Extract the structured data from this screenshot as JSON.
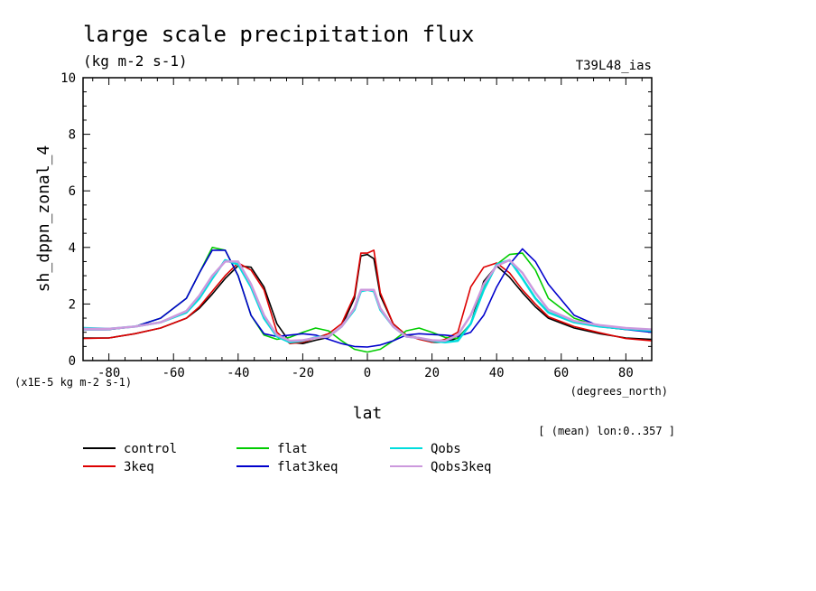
{
  "chart_data": {
    "type": "line",
    "title": "large scale precipitation flux",
    "subtitle": "(kg m-2 s-1)",
    "run_label": "T39L48_ias",
    "ylabel": "sh_dppn_zonal_4",
    "y_scale_note": "(x1E-5 kg m-2 s-1)",
    "xlabel": "lat",
    "x_units": "(degrees_north)",
    "mean_note": "[ (mean) lon:0..357 ]",
    "xlim": [
      -88,
      88
    ],
    "ylim": [
      0,
      10
    ],
    "x_ticks": [
      -80,
      -60,
      -40,
      -20,
      0,
      20,
      40,
      60,
      80
    ],
    "y_ticks": [
      0,
      2,
      4,
      6,
      8,
      10
    ],
    "x_tick_labels": [
      "-80",
      "-60",
      "-40",
      "-20",
      "0",
      "20",
      "40",
      "60",
      "80"
    ],
    "y_tick_labels": [
      "0",
      "2",
      "4",
      "6",
      "8",
      "10"
    ],
    "legend": "below",
    "series": [
      {
        "name": "control",
        "color": "#000000",
        "x": [
          -88,
          -80,
          -72,
          -64,
          -56,
          -52,
          -48,
          -44,
          -40,
          -36,
          -32,
          -28,
          -24,
          -20,
          -16,
          -12,
          -8,
          -4,
          -2,
          0,
          2,
          4,
          8,
          12,
          16,
          20,
          24,
          28,
          32,
          36,
          40,
          44,
          48,
          52,
          56,
          64,
          72,
          80,
          88
        ],
        "y": [
          0.8,
          0.8,
          0.95,
          1.15,
          1.5,
          1.85,
          2.35,
          2.9,
          3.35,
          3.3,
          2.6,
          1.3,
          0.65,
          0.6,
          0.72,
          0.82,
          1.2,
          2.2,
          3.7,
          3.75,
          3.6,
          2.3,
          1.3,
          0.9,
          0.8,
          0.65,
          0.65,
          0.8,
          1.3,
          2.8,
          3.35,
          2.95,
          2.4,
          1.9,
          1.5,
          1.15,
          0.95,
          0.8,
          0.75
        ]
      },
      {
        "name": "3keq",
        "color": "#dd0000",
        "x": [
          -88,
          -80,
          -72,
          -64,
          -56,
          -52,
          -48,
          -44,
          -40,
          -36,
          -32,
          -28,
          -24,
          -20,
          -16,
          -12,
          -8,
          -4,
          -2,
          0,
          2,
          4,
          8,
          12,
          16,
          20,
          24,
          28,
          32,
          36,
          40,
          44,
          48,
          52,
          56,
          64,
          72,
          80,
          88
        ],
        "y": [
          0.78,
          0.8,
          0.95,
          1.15,
          1.5,
          1.9,
          2.45,
          3.0,
          3.45,
          3.2,
          2.5,
          1.0,
          0.6,
          0.65,
          0.8,
          0.95,
          1.3,
          2.3,
          3.8,
          3.8,
          3.9,
          2.4,
          1.3,
          0.9,
          0.75,
          0.65,
          0.75,
          1.0,
          2.6,
          3.3,
          3.45,
          3.1,
          2.5,
          2.0,
          1.55,
          1.2,
          0.98,
          0.78,
          0.7
        ]
      },
      {
        "name": "flat",
        "color": "#00cc00",
        "x": [
          -88,
          -80,
          -72,
          -64,
          -56,
          -52,
          -48,
          -44,
          -40,
          -36,
          -32,
          -28,
          -24,
          -20,
          -16,
          -12,
          -8,
          -4,
          0,
          4,
          8,
          12,
          16,
          20,
          24,
          28,
          32,
          36,
          40,
          44,
          48,
          52,
          56,
          64,
          72,
          80,
          88
        ],
        "y": [
          1.1,
          1.1,
          1.2,
          1.5,
          2.2,
          3.1,
          4.0,
          3.9,
          3.0,
          1.6,
          0.9,
          0.75,
          0.82,
          1.0,
          1.15,
          1.05,
          0.7,
          0.4,
          0.3,
          0.4,
          0.7,
          1.05,
          1.15,
          1.0,
          0.82,
          0.78,
          1.3,
          2.6,
          3.4,
          3.75,
          3.8,
          3.2,
          2.2,
          1.5,
          1.2,
          1.1,
          1.05
        ]
      },
      {
        "name": "flat3keq",
        "color": "#0000cc",
        "x": [
          -88,
          -80,
          -72,
          -64,
          -56,
          -52,
          -48,
          -44,
          -40,
          -36,
          -32,
          -28,
          -24,
          -20,
          -16,
          -12,
          -8,
          -4,
          0,
          4,
          8,
          12,
          16,
          20,
          24,
          28,
          32,
          36,
          40,
          44,
          48,
          52,
          56,
          64,
          72,
          80,
          88
        ],
        "y": [
          1.1,
          1.1,
          1.2,
          1.5,
          2.2,
          3.1,
          3.9,
          3.9,
          3.0,
          1.6,
          0.95,
          0.85,
          0.9,
          0.95,
          0.9,
          0.75,
          0.6,
          0.5,
          0.48,
          0.55,
          0.7,
          0.9,
          0.95,
          0.92,
          0.9,
          0.85,
          1.0,
          1.6,
          2.6,
          3.4,
          3.95,
          3.5,
          2.7,
          1.6,
          1.2,
          1.1,
          1.0
        ]
      },
      {
        "name": "Qobs",
        "color": "#00dddd",
        "x": [
          -88,
          -80,
          -72,
          -64,
          -56,
          -52,
          -48,
          -44,
          -40,
          -36,
          -32,
          -28,
          -24,
          -20,
          -16,
          -12,
          -8,
          -4,
          -2,
          0,
          2,
          4,
          8,
          12,
          16,
          20,
          24,
          28,
          32,
          36,
          40,
          44,
          48,
          52,
          56,
          64,
          72,
          80,
          88
        ],
        "y": [
          1.15,
          1.12,
          1.2,
          1.35,
          1.7,
          2.2,
          2.9,
          3.55,
          3.4,
          2.6,
          1.5,
          0.85,
          0.65,
          0.7,
          0.82,
          0.85,
          1.2,
          1.8,
          2.45,
          2.5,
          2.45,
          1.8,
          1.2,
          0.85,
          0.8,
          0.7,
          0.65,
          0.7,
          1.3,
          2.5,
          3.4,
          3.55,
          2.9,
          2.2,
          1.7,
          1.35,
          1.2,
          1.12,
          1.05
        ]
      },
      {
        "name": "Qobs3keq",
        "color": "#cc99dd",
        "x": [
          -88,
          -80,
          -72,
          -64,
          -56,
          -52,
          -48,
          -44,
          -40,
          -36,
          -32,
          -28,
          -24,
          -20,
          -16,
          -12,
          -8,
          -4,
          -2,
          0,
          2,
          4,
          8,
          12,
          16,
          20,
          24,
          28,
          32,
          36,
          40,
          44,
          48,
          52,
          56,
          64,
          72,
          80,
          88
        ],
        "y": [
          1.12,
          1.12,
          1.2,
          1.35,
          1.75,
          2.3,
          3.0,
          3.5,
          3.5,
          2.7,
          1.6,
          0.9,
          0.7,
          0.72,
          0.8,
          0.85,
          1.2,
          1.85,
          2.5,
          2.5,
          2.5,
          1.85,
          1.2,
          0.85,
          0.8,
          0.72,
          0.7,
          0.9,
          1.6,
          2.7,
          3.35,
          3.55,
          3.1,
          2.4,
          1.8,
          1.4,
          1.25,
          1.15,
          1.1
        ]
      }
    ]
  }
}
